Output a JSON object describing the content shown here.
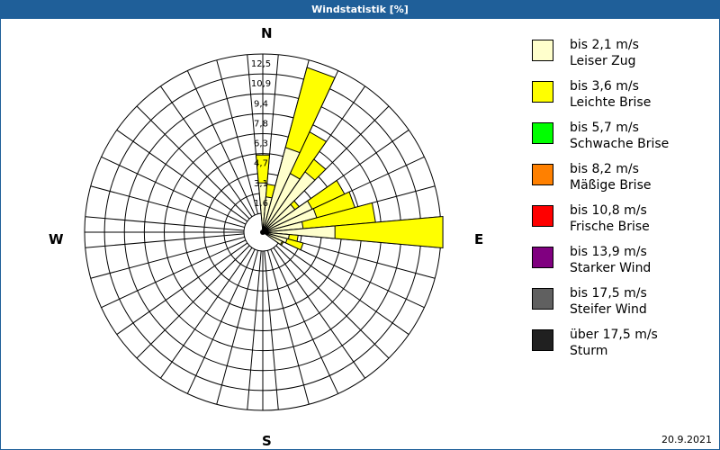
{
  "window": {
    "title": "Windstatistik [%]",
    "date": "20.9.2021"
  },
  "directions": {
    "n": "N",
    "e": "E",
    "s": "S",
    "w": "W"
  },
  "legend": [
    {
      "range": "bis 2,1 m/s",
      "name": "Leiser Zug",
      "color": "#ffffcc"
    },
    {
      "range": "bis 3,6 m/s",
      "name": "Leichte Brise",
      "color": "#ffff00"
    },
    {
      "range": "bis 5,7 m/s",
      "name": "Schwache Brise",
      "color": "#00ff00"
    },
    {
      "range": "bis 8,2 m/s",
      "name": "Mäßige Brise",
      "color": "#ff8000"
    },
    {
      "range": "bis 10,8 m/s",
      "name": "Frische Brise",
      "color": "#ff0000"
    },
    {
      "range": "bis 13,9 m/s",
      "name": "Starker Wind",
      "color": "#800080"
    },
    {
      "range": "bis 17,5 m/s",
      "name": "Steifer Wind",
      "color": "#606060"
    },
    {
      "range": "über 17,5 m/s",
      "name": "Sturm",
      "color": "#202020"
    }
  ],
  "chart_data": {
    "type": "polar-bar (wind rose)",
    "title": "Windstatistik [%]",
    "unit": "%",
    "ring_labels": [
      "1,6",
      "3,1",
      "4,7",
      "6,3",
      "7,8",
      "9,4",
      "10,9",
      "12,5"
    ],
    "rmax": 12.5,
    "sector_width_deg": 10,
    "series_names": [
      "Leiser Zug",
      "Leichte Brise"
    ],
    "sectors": [
      {
        "dir": 0,
        "cumulative": [
          2.4,
          4.6
        ]
      },
      {
        "dir": 10,
        "cumulative": [
          1.3,
          2.3
        ]
      },
      {
        "dir": 20,
        "cumulative": [
          5.4,
          11.9
        ]
      },
      {
        "dir": 30,
        "cumulative": [
          3.6,
          7.2
        ]
      },
      {
        "dir": 40,
        "cumulative": [
          4.3,
          5.5
        ]
      },
      {
        "dir": 50,
        "cumulative": [
          1.6,
          2.0
        ]
      },
      {
        "dir": 60,
        "cumulative": [
          2.8,
          5.6
        ]
      },
      {
        "dir": 70,
        "cumulative": [
          2.9,
          6.0
        ]
      },
      {
        "dir": 80,
        "cumulative": [
          1.7,
          7.4
        ]
      },
      {
        "dir": 90,
        "cumulative": [
          4.2,
          12.7
        ]
      },
      {
        "dir": 100,
        "cumulative": [
          0.6,
          1.3
        ]
      },
      {
        "dir": 110,
        "cumulative": [
          0.5,
          1.8
        ]
      },
      {
        "dir": 120,
        "cumulative": [
          0.2,
          0.3
        ]
      }
    ]
  }
}
